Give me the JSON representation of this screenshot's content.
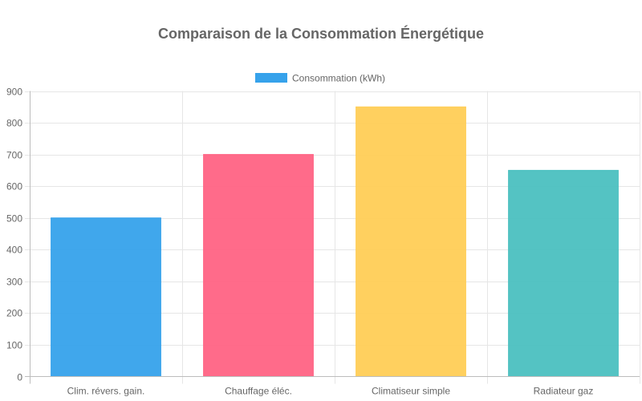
{
  "chart_data": {
    "type": "bar",
    "title": "Comparaison de la Consommation Énergétique",
    "categories": [
      "Clim. révers. gain.",
      "Chauffage éléc.",
      "Climatiseur simple",
      "Radiateur gaz"
    ],
    "series": [
      {
        "name": "Consommation (kWh)",
        "values": [
          500,
          700,
          850,
          650
        ],
        "colors": [
          "#36a2eb",
          "#ff6384",
          "#ffcd56",
          "#4bc0c0"
        ]
      }
    ],
    "legend_color": "#36a2eb",
    "y_ticks": [
      "0",
      "100",
      "200",
      "300",
      "400",
      "500",
      "600",
      "700",
      "800",
      "900"
    ],
    "ylim": [
      0,
      900
    ],
    "grid": true,
    "legend_position": "top"
  }
}
